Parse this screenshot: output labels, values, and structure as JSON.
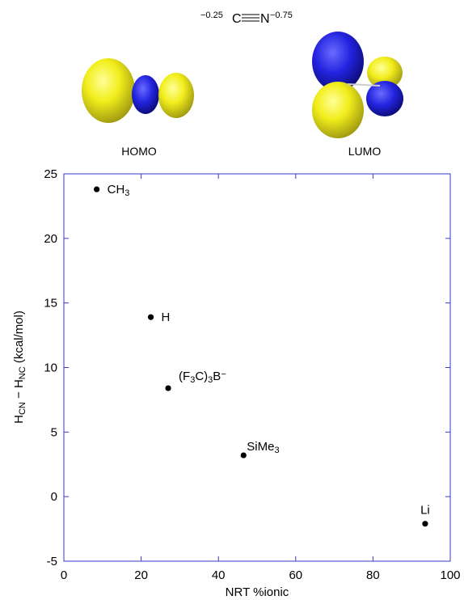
{
  "header": {
    "charge_c": "−0.25",
    "atom_c": "C",
    "atom_n": "N",
    "charge_n": "−0.75"
  },
  "orbitals": {
    "homo_label": "HOMO",
    "lumo_label": "LUMO",
    "colors": {
      "positive": "#f2ee1c",
      "negative": "#1f1fd4"
    }
  },
  "chart_data": {
    "type": "scatter",
    "title": "",
    "xlabel": "NRT %ionic",
    "ylabel_parts": [
      "H",
      "CN",
      " − H",
      "NC",
      " (kcal/mol)"
    ],
    "xlim": [
      0,
      100
    ],
    "ylim": [
      -5,
      25
    ],
    "x_ticks": [
      0,
      20,
      40,
      60,
      80,
      100
    ],
    "y_ticks": [
      -5,
      0,
      5,
      10,
      15,
      20,
      25
    ],
    "grid": false,
    "axis_color": "#3a3ac8",
    "points": [
      {
        "x": 8.5,
        "y": 23.8,
        "label_parts": [
          [
            "CH",
            "n"
          ],
          [
            "3",
            "sub"
          ]
        ]
      },
      {
        "x": 22.5,
        "y": 13.9,
        "label_parts": [
          [
            "H",
            "n"
          ]
        ]
      },
      {
        "x": 27.0,
        "y": 8.4,
        "label_parts": [
          [
            "(F",
            "n"
          ],
          [
            "3",
            "sub"
          ],
          [
            "C)",
            "n"
          ],
          [
            "3",
            "sub"
          ],
          [
            "B",
            "n"
          ],
          [
            "−",
            "sup"
          ]
        ]
      },
      {
        "x": 46.5,
        "y": 3.2,
        "label_parts": [
          [
            "SiMe",
            "n"
          ],
          [
            "3",
            "sub"
          ]
        ]
      },
      {
        "x": 93.5,
        "y": -2.1,
        "label_parts": [
          [
            "Li",
            "n"
          ]
        ]
      }
    ]
  }
}
